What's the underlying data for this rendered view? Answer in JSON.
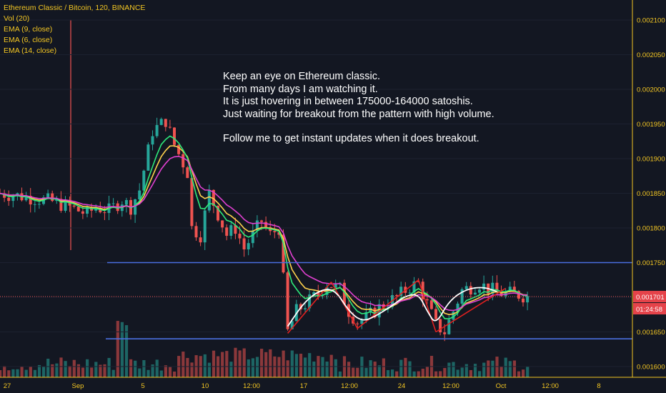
{
  "legend": {
    "title": "Ethereum Classic / Bitcoin, 120, BINANCE",
    "indicators": [
      "Vol (20)",
      "EMA (9, close)",
      "EMA (6, close)",
      "EMA (14, close)"
    ]
  },
  "annotation": {
    "lines": [
      "Keep an eye on Ethereum classic.",
      "From many days I am watching it.",
      "It is just hovering in between 175000-164000 satoshis.",
      "Just waiting for breakout from the pattern with high volume."
    ],
    "follow": "Follow me to get instant updates when it does breakout."
  },
  "price_label": "0.001701",
  "timer_label": "01:24:58",
  "colors": {
    "background": "#131722",
    "text": "#f3c623",
    "up": "#26a69a",
    "down": "#ef5350",
    "level_line": "#4a6fe0",
    "trend_line": "#e02020",
    "ema9": "#ffd24d",
    "ema6": "#2eea7a",
    "ema14": "#e040d0",
    "pattern_curve": "#ffffff",
    "price_badge": "#e5434a",
    "axis_divider": "#f3c623"
  },
  "chart_data": {
    "type": "candlestick",
    "symbol": "Ethereum Classic / Bitcoin",
    "interval": "120",
    "exchange": "BINANCE",
    "ylim": [
      0.001585,
      0.002125
    ],
    "y_ticks": [
      "0.002100",
      "0.002050",
      "0.002000",
      "0.001950",
      "0.001900",
      "0.001850",
      "0.001800",
      "0.001750",
      "0.001700",
      "0.001650",
      "0.001600"
    ],
    "x_ticks": [
      "27",
      "Sep",
      "5",
      "10",
      "12:00",
      "17",
      "12:00",
      "24",
      "12:00",
      "Oct",
      "12:00",
      "8"
    ],
    "last_price": 0.001701,
    "support_level": 0.00164,
    "resistance_level": 0.00175,
    "price_path": [
      [
        0,
        0.00185
      ],
      [
        6,
        0.001845
      ],
      [
        12,
        0.001838
      ],
      [
        16,
        0.00183
      ],
      [
        20,
        0.00182
      ],
      [
        22,
        0.00183
      ],
      [
        25,
        0.001825
      ],
      [
        28,
        0.00184
      ],
      [
        30,
        0.00183
      ],
      [
        32,
        0.001855
      ],
      [
        35,
        0.00194
      ],
      [
        38,
        0.001955
      ],
      [
        40,
        0.00192
      ],
      [
        43,
        0.00188
      ],
      [
        44,
        0.0018
      ],
      [
        46,
        0.00179
      ],
      [
        48,
        0.00185
      ],
      [
        50,
        0.00182
      ],
      [
        52,
        0.00179
      ],
      [
        54,
        0.0018
      ],
      [
        56,
        0.00177
      ],
      [
        58,
        0.00179
      ],
      [
        60,
        0.00181
      ],
      [
        62,
        0.00179
      ],
      [
        64,
        0.0018
      ],
      [
        66,
        0.00165
      ],
      [
        68,
        0.00168
      ],
      [
        70,
        0.00169
      ],
      [
        73,
        0.001705
      ],
      [
        75,
        0.00172
      ],
      [
        78,
        0.001712
      ],
      [
        80,
        0.00168
      ],
      [
        82,
        0.001665
      ],
      [
        84,
        0.00167
      ],
      [
        86,
        0.00168
      ],
      [
        88,
        0.00169
      ],
      [
        91,
        0.0017
      ],
      [
        94,
        0.001715
      ],
      [
        96,
        0.00172
      ],
      [
        98,
        0.00169
      ],
      [
        100,
        0.00166
      ],
      [
        102,
        0.00165
      ],
      [
        104,
        0.00168
      ],
      [
        106,
        0.00171
      ],
      [
        108,
        0.001715
      ],
      [
        110,
        0.00172
      ],
      [
        112,
        0.001712
      ],
      [
        115,
        0.001706
      ],
      [
        118,
        0.001705
      ],
      [
        121,
        0.001701
      ]
    ],
    "volume_level": "low, with spikes near Sep and around the 17th",
    "trend_lines": [
      [
        [
          66,
          0.001648
        ],
        [
          76,
          0.001722
        ]
      ],
      [
        [
          76,
          0.001722
        ],
        [
          82,
          0.001655
        ]
      ],
      [
        [
          82,
          0.001655
        ],
        [
          96,
          0.001725
        ]
      ],
      [
        [
          96,
          0.001725
        ],
        [
          100,
          0.00165
        ]
      ],
      [
        [
          100,
          0.00165
        ],
        [
          116,
          0.001713
        ]
      ]
    ],
    "pattern_curve": [
      [
        66,
        0.001658
      ],
      [
        70,
        0.001695
      ],
      [
        74,
        0.001712
      ],
      [
        77,
        0.00171
      ],
      [
        80,
        0.00168
      ],
      [
        83,
        0.001665
      ],
      [
        86,
        0.001672
      ],
      [
        90,
        0.001688
      ],
      [
        93,
        0.001702
      ],
      [
        96,
        0.001705
      ],
      [
        98,
        0.00168
      ],
      [
        100,
        0.00166
      ],
      [
        103,
        0.001695
      ],
      [
        107,
        0.001712
      ],
      [
        111,
        0.001715
      ],
      [
        114,
        0.001708
      ]
    ]
  }
}
